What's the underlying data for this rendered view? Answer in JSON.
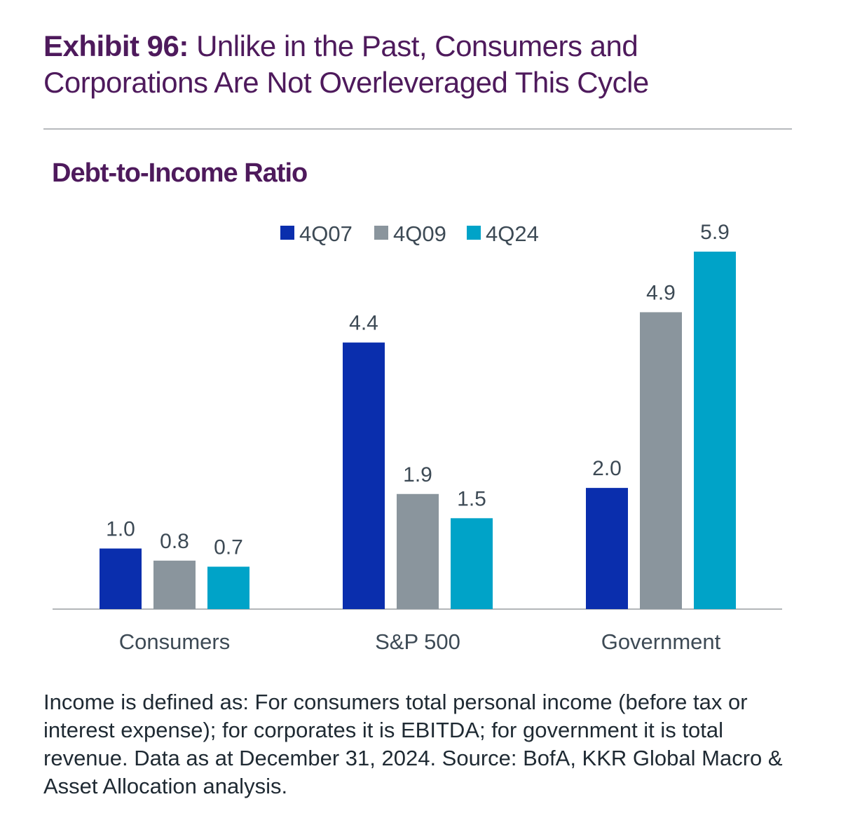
{
  "header": {
    "exhibit_label": "Exhibit 96:",
    "exhibit_title": "Unlike in the Past, Consumers and Corporations Are Not Overleveraged This Cycle"
  },
  "chart_data": {
    "type": "bar",
    "title": "Debt-to-Income Ratio",
    "categories": [
      "Consumers",
      "S&P 500",
      "Government"
    ],
    "series": [
      {
        "name": "4Q07",
        "color": "#0a2ead",
        "values": [
          1.0,
          4.4,
          2.0
        ],
        "labels": [
          "1.0",
          "4.4",
          "2.0"
        ]
      },
      {
        "name": "4Q09",
        "color": "#8a959d",
        "values": [
          0.8,
          1.9,
          4.9
        ],
        "labels": [
          "0.8",
          "1.9",
          "4.9"
        ]
      },
      {
        "name": "4Q24",
        "color": "#00a3c8",
        "values": [
          0.7,
          1.5,
          5.9
        ],
        "labels": [
          "0.7",
          "1.5",
          "5.9"
        ]
      }
    ],
    "xlabel": "",
    "ylabel": "",
    "ylim": [
      0,
      5.9
    ],
    "grid": false,
    "legend_position": "top"
  },
  "footnote": "Income is defined as: For consumers total personal income (before tax or interest expense); for corporates it is EBITDA; for government it is total revenue. Data as at December 31, 2024. Source: BofA, KKR Global Macro & Asset Allocation analysis."
}
